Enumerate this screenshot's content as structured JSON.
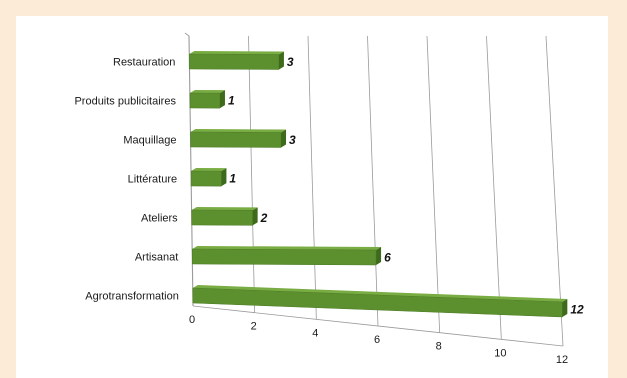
{
  "chart_data": {
    "type": "bar",
    "orientation": "horizontal",
    "style": "3d",
    "categories": [
      "Restauration",
      "Produits publicitaires",
      "Maquillage",
      "Littérature",
      "Ateliers",
      "Artisanat",
      "Agrotransformation"
    ],
    "values": [
      3,
      1,
      3,
      1,
      2,
      6,
      12
    ],
    "data_labels": [
      "3",
      "1",
      "3",
      "1",
      "2",
      "6",
      "12"
    ],
    "xticks": [
      "0",
      "2",
      "4",
      "6",
      "8",
      "10",
      "12"
    ],
    "xlim": [
      0,
      12
    ],
    "grid": true,
    "title": "",
    "xlabel": "",
    "ylabel": ""
  },
  "colors": {
    "background": "#fcebd7",
    "panel": "#ffffff",
    "bar_front": "#5c8f2e",
    "bar_top": "#79ad43",
    "bar_end": "#3e6a1c",
    "grid": "#9a9a9a"
  }
}
